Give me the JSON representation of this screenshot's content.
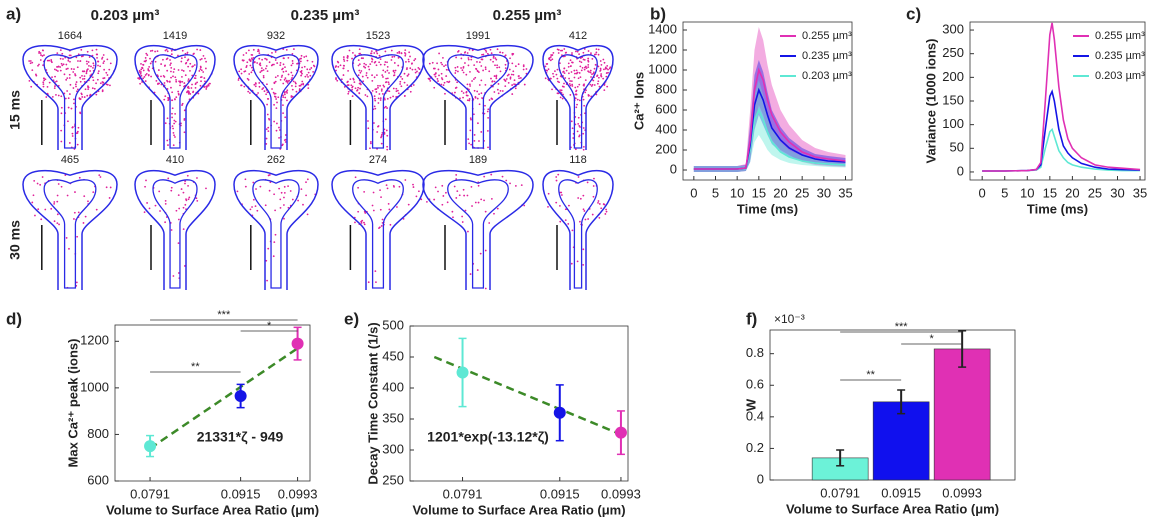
{
  "panel_a": {
    "label": "a)",
    "volumes": [
      "0.203 µm³",
      "0.235 µm³",
      "0.255 µm³"
    ],
    "rows": [
      {
        "label": "15 ms",
        "counts": [
          1664,
          1419,
          932,
          1523,
          1991,
          412
        ]
      },
      {
        "label": "30 ms",
        "counts": [
          465,
          410,
          262,
          274,
          189,
          118
        ]
      }
    ]
  },
  "chart_data": [
    {
      "type": "line",
      "panel_label": "b)",
      "xlabel": "Time (ms)",
      "ylabel": "Ca²⁺ Ions",
      "x": [
        0,
        2,
        4,
        6,
        8,
        10,
        12,
        13,
        14,
        15,
        16,
        17,
        18,
        20,
        22,
        25,
        28,
        31,
        35
      ],
      "xlim": [
        -2.5,
        36.5
      ],
      "ylim": [
        -100,
        1480
      ],
      "xticks": [
        0,
        5,
        10,
        15,
        20,
        25,
        30,
        35
      ],
      "yticks": [
        0,
        200,
        400,
        600,
        800,
        1000,
        1200,
        1400
      ],
      "legend": "upper right",
      "series": [
        {
          "name": "0.255 µm³",
          "color": "#e030b4",
          "values": [
            10,
            10,
            10,
            10,
            10,
            10,
            20,
            300,
            800,
            1000,
            900,
            700,
            550,
            380,
            280,
            180,
            130,
            110,
            90
          ],
          "upper": [
            40,
            40,
            40,
            40,
            40,
            40,
            60,
            600,
            1200,
            1430,
            1300,
            1050,
            850,
            600,
            450,
            300,
            220,
            180,
            150
          ],
          "lower": [
            -20,
            -20,
            -20,
            -20,
            -20,
            -20,
            -10,
            100,
            450,
            650,
            550,
            400,
            300,
            200,
            150,
            80,
            50,
            40,
            30
          ]
        },
        {
          "name": "0.235 µm³",
          "color": "#1414e6",
          "values": [
            10,
            10,
            10,
            10,
            10,
            10,
            20,
            250,
            650,
            800,
            700,
            550,
            420,
            300,
            220,
            150,
            110,
            90,
            80
          ],
          "upper": [
            40,
            40,
            40,
            40,
            40,
            40,
            50,
            450,
            950,
            1100,
            980,
            780,
            600,
            430,
            320,
            220,
            160,
            140,
            120
          ],
          "lower": [
            -20,
            -20,
            -20,
            -20,
            -20,
            -20,
            -10,
            80,
            400,
            550,
            450,
            350,
            260,
            180,
            130,
            90,
            60,
            50,
            40
          ]
        },
        {
          "name": "0.203 µm³",
          "color": "#5ee8d4",
          "values": [
            10,
            10,
            10,
            10,
            10,
            10,
            15,
            200,
            500,
            600,
            500,
            380,
            280,
            180,
            130,
            90,
            70,
            60,
            50
          ],
          "upper": [
            40,
            40,
            40,
            40,
            40,
            40,
            40,
            350,
            750,
            900,
            750,
            580,
            420,
            280,
            200,
            140,
            110,
            100,
            80
          ],
          "lower": [
            -20,
            -20,
            -20,
            -20,
            -20,
            -20,
            -10,
            80,
            280,
            350,
            280,
            200,
            150,
            100,
            70,
            50,
            40,
            30,
            25
          ]
        }
      ]
    },
    {
      "type": "line",
      "panel_label": "c)",
      "xlabel": "Time (ms)",
      "ylabel": "Variance (1000 ions)",
      "x": [
        0,
        5,
        10,
        12,
        13,
        14,
        15,
        15.5,
        16,
        17,
        18,
        19,
        20,
        22,
        25,
        28,
        31,
        35
      ],
      "xlim": [
        -2.7,
        36.1
      ],
      "ylim": [
        -17,
        317
      ],
      "xticks": [
        0,
        5,
        10,
        15,
        20,
        25,
        30,
        35
      ],
      "yticks": [
        0,
        50,
        100,
        150,
        200,
        250,
        300
      ],
      "legend": "upper right",
      "series": [
        {
          "name": "0.255 µm³",
          "color": "#e030b4",
          "values": [
            2,
            2,
            3,
            5,
            20,
            150,
            290,
            315,
            280,
            180,
            110,
            70,
            50,
            30,
            15,
            10,
            8,
            5
          ]
        },
        {
          "name": "0.235 µm³",
          "color": "#1414e6",
          "values": [
            2,
            2,
            3,
            5,
            15,
            90,
            160,
            170,
            150,
            90,
            55,
            40,
            30,
            18,
            10,
            6,
            5,
            4
          ]
        },
        {
          "name": "0.203 µm³",
          "color": "#5ee8d4",
          "values": [
            2,
            2,
            3,
            4,
            10,
            50,
            85,
            90,
            75,
            45,
            30,
            20,
            15,
            10,
            6,
            4,
            3,
            3
          ]
        }
      ]
    },
    {
      "type": "scatter",
      "panel_label": "d)",
      "xlabel": "Volume to Surface Area Ratio (μm)",
      "ylabel": "Max Ca²⁺ peak (ions)",
      "x": [
        0.0791,
        0.0915,
        0.0993
      ],
      "values": [
        750,
        965,
        1190
      ],
      "errors": [
        45,
        50,
        70
      ],
      "colors": [
        "#5ee8d4",
        "#1414e6",
        "#e030b4"
      ],
      "xlim": [
        0.0743,
        0.101
      ],
      "ylim": [
        600,
        1270
      ],
      "xticks": [
        0.0791,
        0.0915,
        0.0993
      ],
      "yticks": [
        600,
        800,
        1000,
        1200
      ],
      "fit": {
        "label": "21331*ζ - 949",
        "color": "#3c8a28",
        "x": [
          0.0791,
          0.0993
        ],
        "values": [
          740,
          1170
        ]
      },
      "brackets": [
        {
          "x1": 0.0791,
          "x2": 0.0993,
          "label": "***"
        },
        {
          "x1": 0.0915,
          "x2": 0.0993,
          "label": "*"
        },
        {
          "x1": 0.0791,
          "x2": 0.0915,
          "label": "**"
        }
      ]
    },
    {
      "type": "scatter",
      "panel_label": "e)",
      "xlabel": "Volume to Surface Area Ratio (μm)",
      "ylabel": "Decay Time Constant (1/s)",
      "x": [
        0.0791,
        0.0915,
        0.0993
      ],
      "values": [
        425,
        360,
        328
      ],
      "errors": [
        55,
        45,
        35
      ],
      "colors": [
        "#5ee8d4",
        "#1414e6",
        "#e030b4"
      ],
      "xlim": [
        0.0724,
        0.1002
      ],
      "ylim": [
        250,
        500
      ],
      "xticks": [
        0.0791,
        0.0915,
        0.0993
      ],
      "yticks": [
        250,
        300,
        350,
        400,
        450,
        500
      ],
      "fit": {
        "label": "1201*exp(-13.12*ζ)",
        "color": "#3c8a28",
        "x": [
          0.0755,
          0.0993
        ],
        "values": [
          450,
          325
        ]
      }
    },
    {
      "type": "bar",
      "panel_label": "f)",
      "xlabel": "Volume to Surface Area Ratio (μm)",
      "ylabel": "W",
      "multiplier": "×10⁻³",
      "categories": [
        "0.0791",
        "0.0915",
        "0.0993"
      ],
      "values": [
        0.14,
        0.495,
        0.83
      ],
      "errors": [
        0.05,
        0.075,
        0.115
      ],
      "colors": [
        "#6cf2d8",
        "#1010ee",
        "#e030b4"
      ],
      "ylim": [
        0,
        0.95
      ],
      "yticks": [
        0,
        0.2,
        0.4,
        0.6,
        0.8
      ],
      "brackets": [
        {
          "x1": "0.0791",
          "x2": "0.0993",
          "label": "***"
        },
        {
          "x1": "0.0915",
          "x2": "0.0993",
          "label": "*"
        },
        {
          "x1": "0.0791",
          "x2": "0.0915",
          "label": "**"
        }
      ]
    }
  ]
}
